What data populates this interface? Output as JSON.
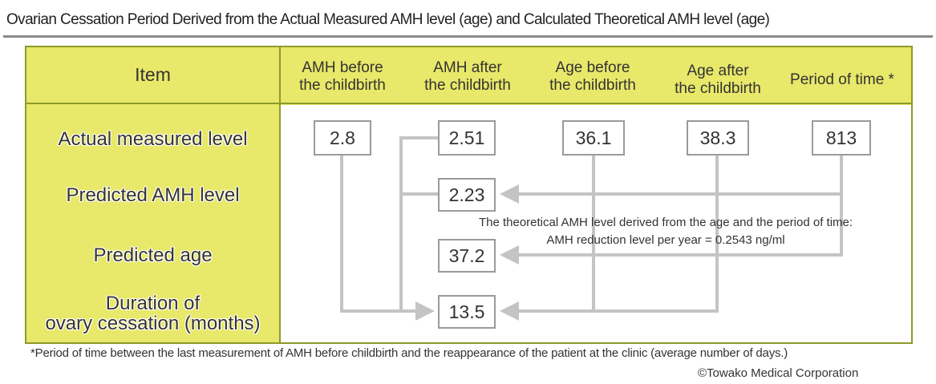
{
  "title": "Ovarian Cessation Period Derived from the Actual Measured AMH level (age) and Calculated Theoretical AMH level (age)",
  "header": {
    "item": "Item",
    "columns": [
      [
        "AMH before",
        "the childbirth"
      ],
      [
        "AMH after",
        "the childbirth"
      ],
      [
        "Age before",
        "the childbirth"
      ],
      [
        "Age after",
        "the childbirth"
      ],
      [
        "Period of time *"
      ]
    ]
  },
  "rows": {
    "actual": "Actual measured level",
    "predicted_amh": "Predicted AMH level",
    "predicted_age": "Predicted age",
    "duration": [
      "Duration of",
      "ovary cessation (months)"
    ]
  },
  "values": {
    "amh_before": "2.8",
    "amh_after": "2.51",
    "age_before": "36.1",
    "age_after": "38.3",
    "period": "813",
    "predicted_amh": "2.23",
    "predicted_age": "37.2",
    "duration": "13.5"
  },
  "note": {
    "line1": "The theoretical AMH level derived from the age and the period of time:",
    "line2": "AMH reduction level per year = 0.2543 ng/ml"
  },
  "footnote": "*Period of time between the last measurement of AMH before childbirth and the reappearance of the patient at the clinic (average number of days.)",
  "copyright": "©Towako Medical Corporation",
  "colors": {
    "band": "#e8e86a",
    "border": "#8d9a2a",
    "arrow": "#c4c4c4",
    "box_border": "#9a9a9a"
  }
}
